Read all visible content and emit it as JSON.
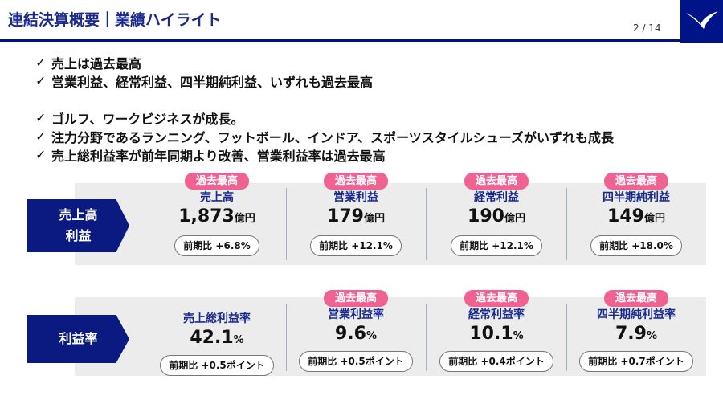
{
  "header": {
    "title": "連結決算概要｜業績ハイライト",
    "page_number": "2 / 14",
    "logo_icon": "mizuno-runbird-logo",
    "accent_color": "#001489"
  },
  "bullets": [
    "売上は過去最高",
    "営業利益、経常利益、四半期純利益、いずれも過去最高",
    "ゴルフ、ワークビジネスが成長。",
    "注力分野であるランニング、フットボール、インドア、スポーツスタイルシューズがいずれも成長",
    "売上総利益率が前年同期より改善、営業利益率は過去最高"
  ],
  "check_mark": "✓",
  "sales_profit": {
    "label_line1": "売上高",
    "label_line2": "利益",
    "metrics": [
      {
        "badge": "過去最高",
        "label": "売上高",
        "value": "1,873",
        "unit": "億円",
        "comparison": "前期比 +6.8%"
      },
      {
        "badge": "過去最高",
        "label": "営業利益",
        "value": "179",
        "unit": "億円",
        "comparison": "前期比 +12.1%"
      },
      {
        "badge": "過去最高",
        "label": "経常利益",
        "value": "190",
        "unit": "億円",
        "comparison": "前期比 +12.1%"
      },
      {
        "badge": "過去最高",
        "label": "四半期純利益",
        "value": "149",
        "unit": "億円",
        "comparison": "前期比 +18.0%"
      }
    ]
  },
  "margins": {
    "label": "利益率",
    "metrics": [
      {
        "badge": "",
        "label": "売上総利益率",
        "value": "42.1",
        "unit": "%",
        "comparison": "前期比 +0.5ポイント"
      },
      {
        "badge": "過去最高",
        "label": "営業利益率",
        "value": "9.6",
        "unit": "%",
        "comparison": "前期比 +0.5ポイント"
      },
      {
        "badge": "過去最高",
        "label": "経常利益率",
        "value": "10.1",
        "unit": "%",
        "comparison": "前期比 +0.4ポイント"
      },
      {
        "badge": "過去最高",
        "label": "四半期純利益率",
        "value": "7.9",
        "unit": "%",
        "comparison": "前期比 +0.7ポイント"
      }
    ]
  },
  "colors": {
    "badge": "#f06292",
    "label_box": "#0a1a80",
    "panel": "#ececec",
    "metric_label": "#1a2a8c"
  }
}
